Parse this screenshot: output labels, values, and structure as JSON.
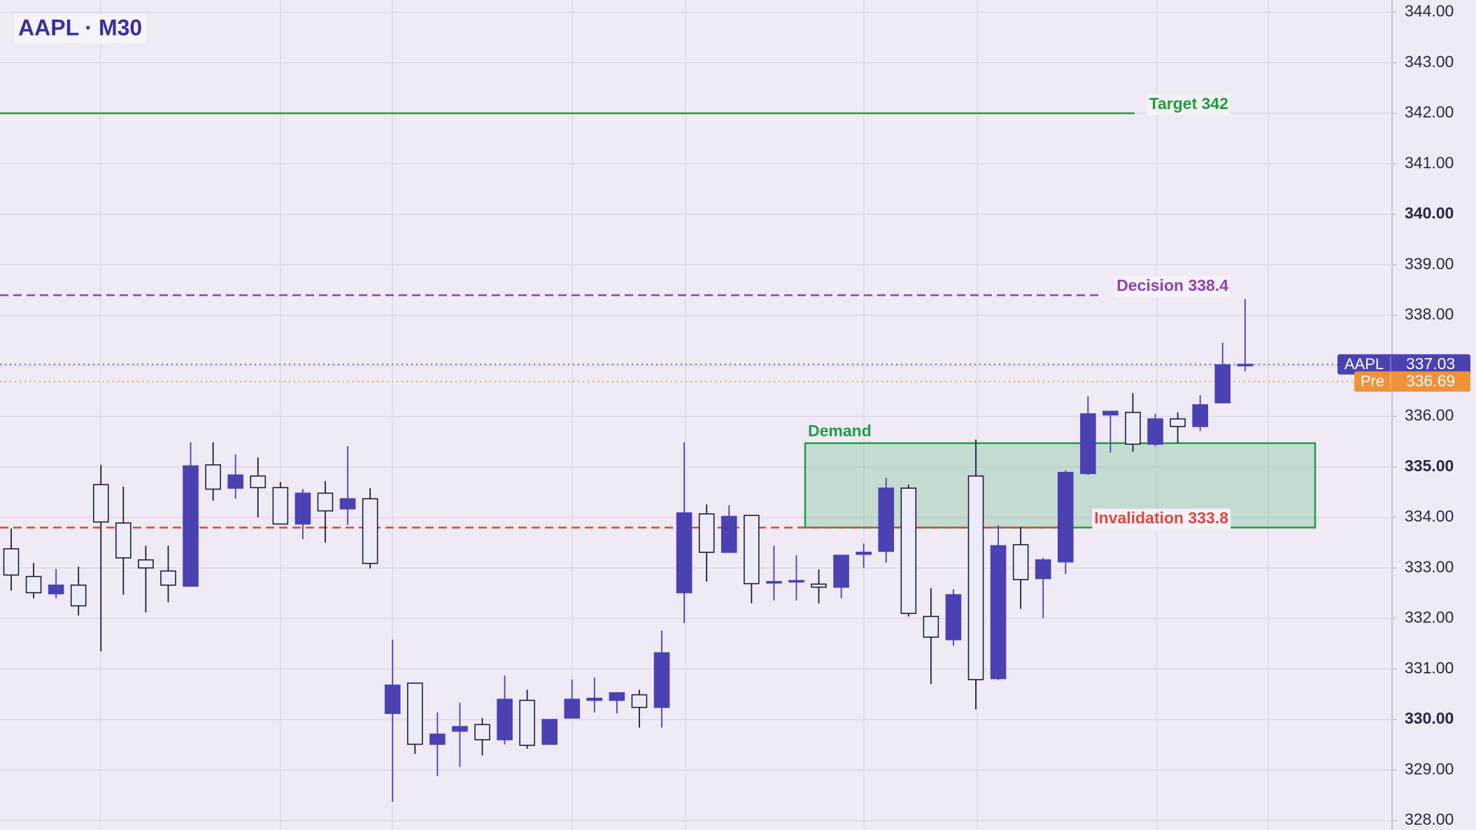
{
  "chart_data": {
    "type": "candlestick",
    "title": "AAPL · M30",
    "up_color": "#4b41b3",
    "down_fill": "#ecebf7",
    "down_outline": "#1e1e38",
    "open": [
      333.38,
      332.83,
      332.49,
      332.66,
      334.65,
      333.89,
      333.16,
      332.94,
      332.64,
      335.04,
      334.58,
      334.82,
      334.59,
      333.87,
      334.48,
      334.17,
      334.37,
      330.12,
      330.72,
      329.51,
      329.77,
      329.9,
      329.6,
      330.38,
      329.51,
      330.03,
      330.38,
      330.38,
      330.49,
      330.24,
      332.51,
      334.07,
      333.31,
      334.04,
      332.71,
      332.73,
      332.68,
      332.62,
      333.27,
      333.33,
      334.58,
      332.04,
      331.58,
      334.82,
      330.81,
      333.46,
      332.79,
      333.12,
      334.87,
      336.03,
      336.08,
      335.45,
      335.95,
      335.8,
      336.27,
      337.01
    ],
    "high": [
      333.78,
      333.1,
      332.98,
      333.03,
      335.04,
      334.61,
      333.44,
      333.44,
      335.49,
      335.49,
      335.25,
      335.19,
      334.7,
      334.56,
      334.72,
      335.41,
      334.58,
      331.58,
      330.72,
      330.14,
      330.33,
      330.03,
      330.87,
      330.59,
      330.0,
      330.79,
      330.83,
      330.53,
      330.59,
      331.76,
      335.49,
      334.26,
      334.24,
      334.05,
      333.44,
      333.25,
      332.97,
      333.25,
      333.48,
      334.78,
      334.65,
      332.6,
      332.58,
      335.54,
      333.85,
      333.81,
      333.2,
      334.93,
      336.4,
      336.1,
      336.46,
      336.05,
      336.08,
      336.42,
      337.46,
      338.32
    ],
    "low": [
      332.55,
      332.4,
      332.4,
      332.06,
      331.35,
      332.47,
      332.12,
      332.32,
      332.64,
      334.33,
      334.37,
      334.0,
      333.87,
      333.57,
      333.5,
      333.85,
      332.99,
      328.37,
      329.32,
      328.88,
      329.06,
      329.29,
      329.51,
      329.42,
      329.51,
      330.03,
      330.14,
      330.12,
      329.84,
      329.84,
      331.91,
      332.73,
      333.31,
      332.3,
      332.36,
      332.36,
      332.3,
      332.4,
      333.0,
      333.1,
      332.04,
      330.7,
      331.46,
      330.2,
      330.78,
      332.19,
      332.01,
      332.88,
      334.84,
      335.28,
      335.3,
      335.41,
      335.47,
      335.71,
      336.27,
      336.89
    ],
    "close": [
      332.86,
      332.51,
      332.66,
      332.25,
      333.91,
      333.2,
      333.0,
      332.66,
      335.02,
      334.56,
      334.84,
      334.59,
      333.87,
      334.48,
      334.13,
      334.37,
      333.09,
      330.68,
      329.51,
      329.71,
      329.86,
      329.6,
      330.4,
      329.49,
      330.0,
      330.4,
      330.42,
      330.53,
      330.24,
      331.32,
      334.09,
      333.31,
      334.02,
      332.69,
      332.73,
      332.75,
      332.62,
      333.25,
      333.31,
      334.58,
      332.1,
      331.63,
      332.47,
      330.79,
      333.44,
      332.77,
      333.16,
      334.89,
      336.05,
      336.1,
      335.45,
      335.95,
      335.8,
      336.23,
      337.02,
      337.03
    ],
    "ylim": [
      328,
      344
    ],
    "yticks": [
      {
        "value": 328,
        "label": "328.00"
      },
      {
        "value": 329,
        "label": "329.00"
      },
      {
        "value": 330,
        "label": "330.00"
      },
      {
        "value": 331,
        "label": "331.00"
      },
      {
        "value": 332,
        "label": "332.00"
      },
      {
        "value": 333,
        "label": "333.00"
      },
      {
        "value": 334,
        "label": "334.00"
      },
      {
        "value": 335,
        "label": "335.00"
      },
      {
        "value": 336,
        "label": "336.00"
      },
      {
        "value": 337,
        "label": "337.00"
      },
      {
        "value": 338,
        "label": "338.00"
      },
      {
        "value": 339,
        "label": "339.00"
      },
      {
        "value": 340,
        "label": "340.00"
      },
      {
        "value": 341,
        "label": "341.00"
      },
      {
        "value": 342,
        "label": "342.00"
      },
      {
        "value": 343,
        "label": "343.00"
      },
      {
        "value": 344,
        "label": "344.00"
      }
    ],
    "grid": true,
    "zone": {
      "label": "Demand",
      "low": 333.8,
      "high": 335.47,
      "color": "#1f9e4a"
    },
    "levels": [
      {
        "label": "Target 342",
        "value": 342,
        "color": "#1f9e3a",
        "style": "solid"
      },
      {
        "label": "Decision 338.4",
        "value": 338.4,
        "color": "#8e44ad",
        "style": "dashed"
      },
      {
        "label": "Invalidation 333.8",
        "value": 333.8,
        "color": "#e0463a",
        "style": "dashed"
      }
    ],
    "price_tags": [
      {
        "name": "AAPL",
        "value": 337.03,
        "color": "#4b41b3"
      },
      {
        "name": "Pre",
        "value": 336.69,
        "color": "#f0923a"
      }
    ]
  }
}
